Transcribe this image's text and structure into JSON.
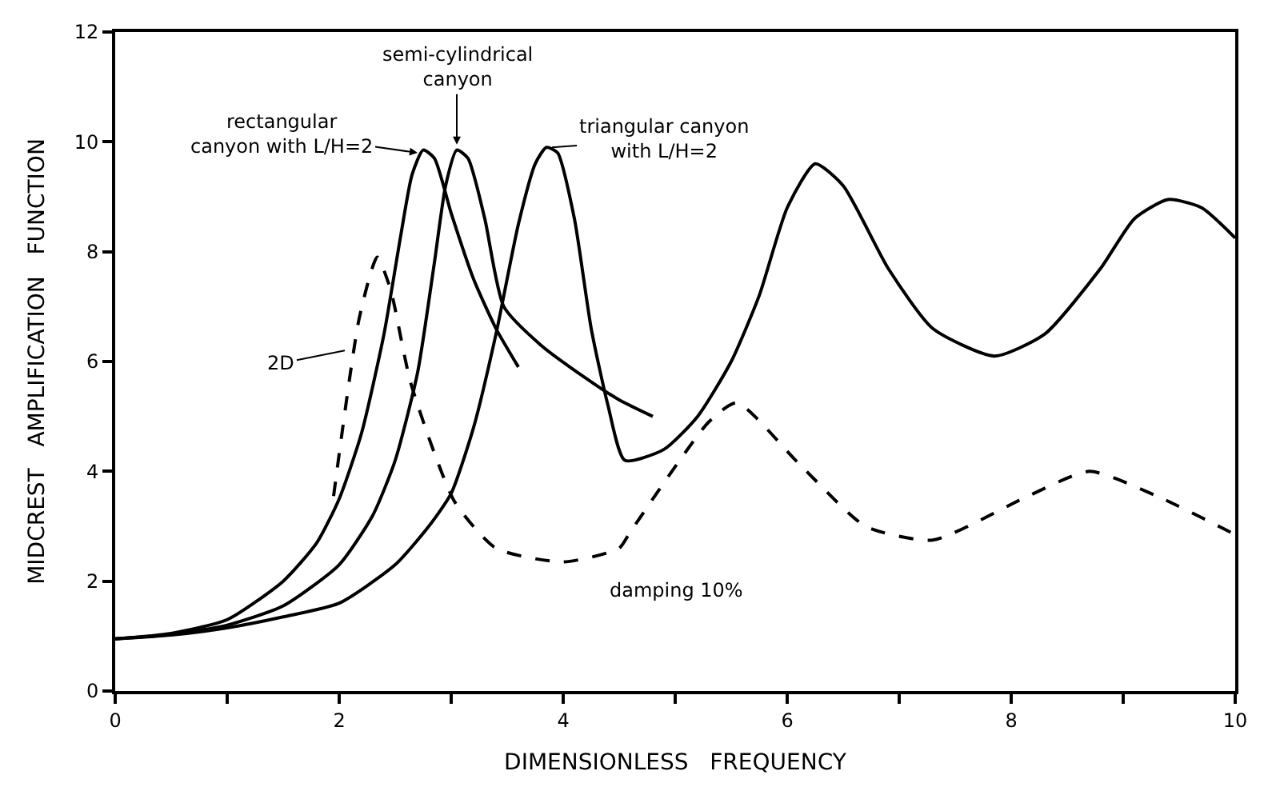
{
  "chart_data": {
    "type": "line",
    "xlabel": "DIMENSIONLESS   FREQUENCY",
    "ylabel": "MIDCREST   AMPLIFICATION   FUNCTION",
    "xlim": [
      0,
      10
    ],
    "ylim": [
      0,
      12
    ],
    "xticks": [
      0,
      {
        "value": 1,
        "label": null
      },
      2,
      {
        "value": 3,
        "label": null
      },
      4,
      {
        "value": 5,
        "label": null
      },
      6,
      {
        "value": 7,
        "label": null
      },
      8,
      {
        "value": 9,
        "label": null
      },
      10
    ],
    "yticks": [
      0,
      2,
      4,
      6,
      8,
      10,
      12
    ],
    "marker": "none",
    "series": [
      {
        "color": "#000000",
        "line_style": "solid",
        "x": [
          0,
          0.5,
          1.0,
          1.5,
          1.8,
          2.0,
          2.2,
          2.4,
          2.55,
          2.65,
          2.75,
          2.85,
          3.0,
          3.2,
          3.4,
          3.6
        ],
        "values": [
          0.95,
          1.05,
          1.3,
          2.0,
          2.7,
          3.5,
          4.7,
          6.5,
          8.3,
          9.4,
          9.85,
          9.7,
          8.7,
          7.5,
          6.6,
          5.9
        ]
      },
      {
        "color": "#000000",
        "line_style": "solid",
        "x": [
          0,
          0.5,
          1.0,
          1.5,
          2.0,
          2.3,
          2.5,
          2.7,
          2.85,
          2.95,
          3.05,
          3.15,
          3.3,
          3.47,
          3.8,
          4.2,
          4.5,
          4.8
        ],
        "values": [
          0.95,
          1.03,
          1.2,
          1.55,
          2.3,
          3.2,
          4.2,
          5.8,
          7.8,
          9.2,
          9.85,
          9.7,
          8.6,
          7.0,
          6.3,
          5.7,
          5.3,
          5.0
        ]
      },
      {
        "color": "#000000",
        "line_style": "solid",
        "x": [
          0,
          0.5,
          1.0,
          1.5,
          2.0,
          2.5,
          2.8,
          3.0,
          3.2,
          3.4,
          3.6,
          3.75,
          3.85,
          3.95,
          4.1,
          4.25,
          4.4,
          4.55,
          4.9,
          5.2,
          5.5,
          5.75,
          6.0,
          6.25,
          6.5,
          6.9,
          7.3,
          7.85,
          8.3,
          8.8,
          9.1,
          9.4,
          9.7,
          10
        ],
        "values": [
          0.95,
          1.02,
          1.15,
          1.35,
          1.6,
          2.3,
          3.0,
          3.6,
          4.8,
          6.5,
          8.5,
          9.6,
          9.9,
          9.8,
          8.6,
          6.6,
          5.2,
          4.2,
          4.4,
          5.0,
          6.0,
          7.2,
          8.8,
          9.6,
          9.2,
          7.7,
          6.6,
          6.1,
          6.5,
          7.7,
          8.6,
          8.95,
          8.8,
          8.25
        ]
      },
      {
        "color": "#000000",
        "line_style": "dashed",
        "x": [
          1.95,
          2.18,
          2.34,
          2.46,
          2.64,
          3.03,
          3.4,
          4.0,
          4.5,
          4.6,
          5.3,
          5.55,
          6.1,
          6.7,
          7.3,
          8.15,
          8.7,
          9.3,
          10
        ],
        "values": [
          3.55,
          6.8,
          7.9,
          7.3,
          5.6,
          3.45,
          2.6,
          2.35,
          2.6,
          2.9,
          4.9,
          5.25,
          4.15,
          3.0,
          2.75,
          3.55,
          4.0,
          3.55,
          2.85
        ]
      }
    ],
    "annotations": [
      {
        "text": "rectangular\ncanyon with L/H=2",
        "x": 2.7,
        "y": 9.8
      },
      {
        "text": "semi-cylindrical\ncanyon",
        "x": 3.05,
        "y": 9.95
      },
      {
        "text": "triangular canyon\nwith L/H=2",
        "x": 3.9,
        "y": 9.9
      },
      {
        "text": "2D",
        "x": 2.05,
        "y": 6.2
      },
      "damping 10%"
    ]
  }
}
